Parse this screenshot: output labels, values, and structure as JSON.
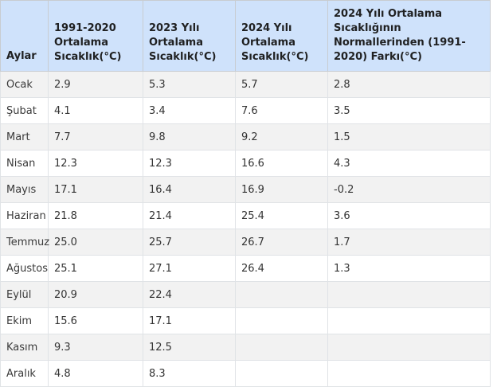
{
  "table": {
    "headers": [
      "Aylar",
      "1991-2020 Ortalama Sıcaklık(°C)",
      "2023 Yılı Ortalama Sıcaklık(°C)",
      "2024 Yılı Ortalama Sıcaklık(°C)",
      "2024 Yılı Ortalama Sıcaklığının Normallerinden (1991-2020) Farkı(°C)"
    ],
    "rows": [
      [
        "Ocak",
        "2.9",
        "5.3",
        "5.7",
        "2.8"
      ],
      [
        "Şubat",
        "4.1",
        "3.4",
        "7.6",
        "3.5"
      ],
      [
        "Mart",
        "7.7",
        "9.8",
        "9.2",
        "1.5"
      ],
      [
        "Nisan",
        "12.3",
        "12.3",
        "16.6",
        "4.3"
      ],
      [
        "Mayıs",
        "17.1",
        "16.4",
        "16.9",
        "-0.2"
      ],
      [
        "Haziran",
        "21.8",
        "21.4",
        "25.4",
        "3.6"
      ],
      [
        "Temmuz",
        "25.0",
        "25.7",
        "26.7",
        "1.7"
      ],
      [
        "Ağustos",
        "25.1",
        "27.1",
        "26.4",
        "1.3"
      ],
      [
        "Eylül",
        "20.9",
        "22.4",
        "",
        ""
      ],
      [
        "Ekim",
        "15.6",
        "17.1",
        "",
        ""
      ],
      [
        "Kasım",
        "9.3",
        "12.5",
        "",
        ""
      ],
      [
        "Aralık",
        "4.8",
        "8.3",
        "",
        ""
      ]
    ]
  }
}
